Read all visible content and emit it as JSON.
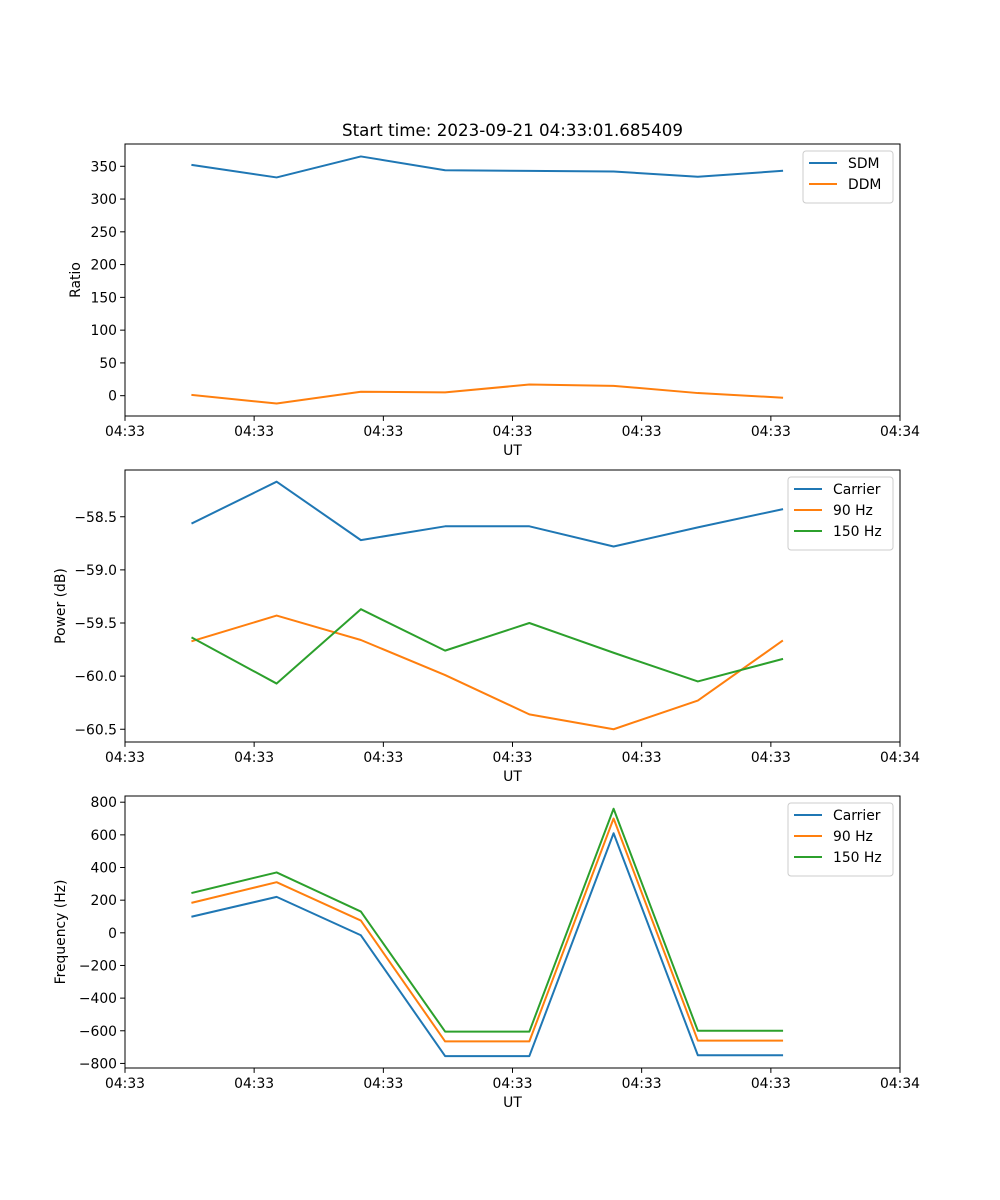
{
  "figure": {
    "title": "Start time: 2023-09-21 04:33:01.685409"
  },
  "colors": {
    "blue": "#1f77b4",
    "orange": "#ff7f0e",
    "green": "#2ca02c"
  },
  "chart_data": [
    {
      "type": "line",
      "title": "Start time: 2023-09-21 04:33:01.685409",
      "xlabel": "UT",
      "ylabel": "Ratio",
      "x": [
        1,
        2,
        3,
        4,
        5,
        6,
        7,
        8
      ],
      "xlim": [
        0.2,
        9.4
      ],
      "xticks": [
        0.2,
        1.733,
        3.267,
        4.8,
        6.333,
        7.867,
        9.4
      ],
      "xticklabels": [
        "04:33",
        "04:33",
        "04:33",
        "04:33",
        "04:33",
        "04:33",
        "04:34"
      ],
      "ylim": [
        -31,
        384
      ],
      "yticks": [
        0,
        50,
        100,
        150,
        200,
        250,
        300,
        350
      ],
      "yticklabels": [
        "0",
        "50",
        "100",
        "150",
        "200",
        "250",
        "300",
        "350"
      ],
      "legend": "upper right",
      "series": [
        {
          "name": "SDM",
          "color": "#1f77b4",
          "values": [
            352,
            333,
            365,
            344,
            343,
            342,
            334,
            343
          ]
        },
        {
          "name": "DDM",
          "color": "#ff7f0e",
          "values": [
            1,
            -12,
            6,
            5,
            17,
            15,
            4,
            -3
          ]
        }
      ]
    },
    {
      "type": "line",
      "title": "",
      "xlabel": "UT",
      "ylabel": "Power (dB)",
      "x": [
        1,
        2,
        3,
        4,
        5,
        6,
        7,
        8
      ],
      "xlim": [
        0.2,
        9.4
      ],
      "xticks": [
        0.2,
        1.733,
        3.267,
        4.8,
        6.333,
        7.867,
        9.4
      ],
      "xticklabels": [
        "04:33",
        "04:33",
        "04:33",
        "04:33",
        "04:33",
        "04:33",
        "04:34"
      ],
      "ylim": [
        -60.62,
        -58.06
      ],
      "yticks": [
        -60.5,
        -60.0,
        -59.5,
        -59.0,
        -58.5
      ],
      "yticklabels": [
        "−60.5",
        "−60.0",
        "−59.5",
        "−59.0",
        "−58.5"
      ],
      "legend": "upper right",
      "series": [
        {
          "name": "Carrier",
          "color": "#1f77b4",
          "values": [
            -58.56,
            -58.17,
            -58.72,
            -58.59,
            -58.59,
            -58.78,
            -58.6,
            -58.43
          ]
        },
        {
          "name": "90 Hz",
          "color": "#ff7f0e",
          "values": [
            -59.67,
            -59.43,
            -59.66,
            -59.99,
            -60.36,
            -60.5,
            -60.23,
            -59.67
          ]
        },
        {
          "name": "150 Hz",
          "color": "#2ca02c",
          "values": [
            -59.64,
            -60.07,
            -59.37,
            -59.76,
            -59.5,
            -59.78,
            -60.05,
            -59.84
          ]
        }
      ]
    },
    {
      "type": "line",
      "title": "",
      "xlabel": "UT",
      "ylabel": "Frequency (Hz)",
      "x": [
        1,
        2,
        3,
        4,
        5,
        6,
        7,
        8
      ],
      "xlim": [
        0.2,
        9.4
      ],
      "xticks": [
        0.2,
        1.733,
        3.267,
        4.8,
        6.333,
        7.867,
        9.4
      ],
      "xticklabels": [
        "04:33",
        "04:33",
        "04:33",
        "04:33",
        "04:33",
        "04:33",
        "04:34"
      ],
      "ylim": [
        -828,
        838
      ],
      "yticks": [
        -800,
        -600,
        -400,
        -200,
        0,
        200,
        400,
        600,
        800
      ],
      "yticklabels": [
        "−800",
        "−600",
        "−400",
        "−200",
        "0",
        "200",
        "400",
        "600",
        "800"
      ],
      "legend": "upper right",
      "series": [
        {
          "name": "Carrier",
          "color": "#1f77b4",
          "values": [
            100,
            220,
            -15,
            -755,
            -755,
            610,
            -750,
            -750
          ]
        },
        {
          "name": "90 Hz",
          "color": "#ff7f0e",
          "values": [
            185,
            310,
            75,
            -665,
            -665,
            700,
            -660,
            -660
          ]
        },
        {
          "name": "150 Hz",
          "color": "#2ca02c",
          "values": [
            245,
            370,
            130,
            -605,
            -605,
            760,
            -600,
            -600
          ]
        }
      ]
    }
  ]
}
